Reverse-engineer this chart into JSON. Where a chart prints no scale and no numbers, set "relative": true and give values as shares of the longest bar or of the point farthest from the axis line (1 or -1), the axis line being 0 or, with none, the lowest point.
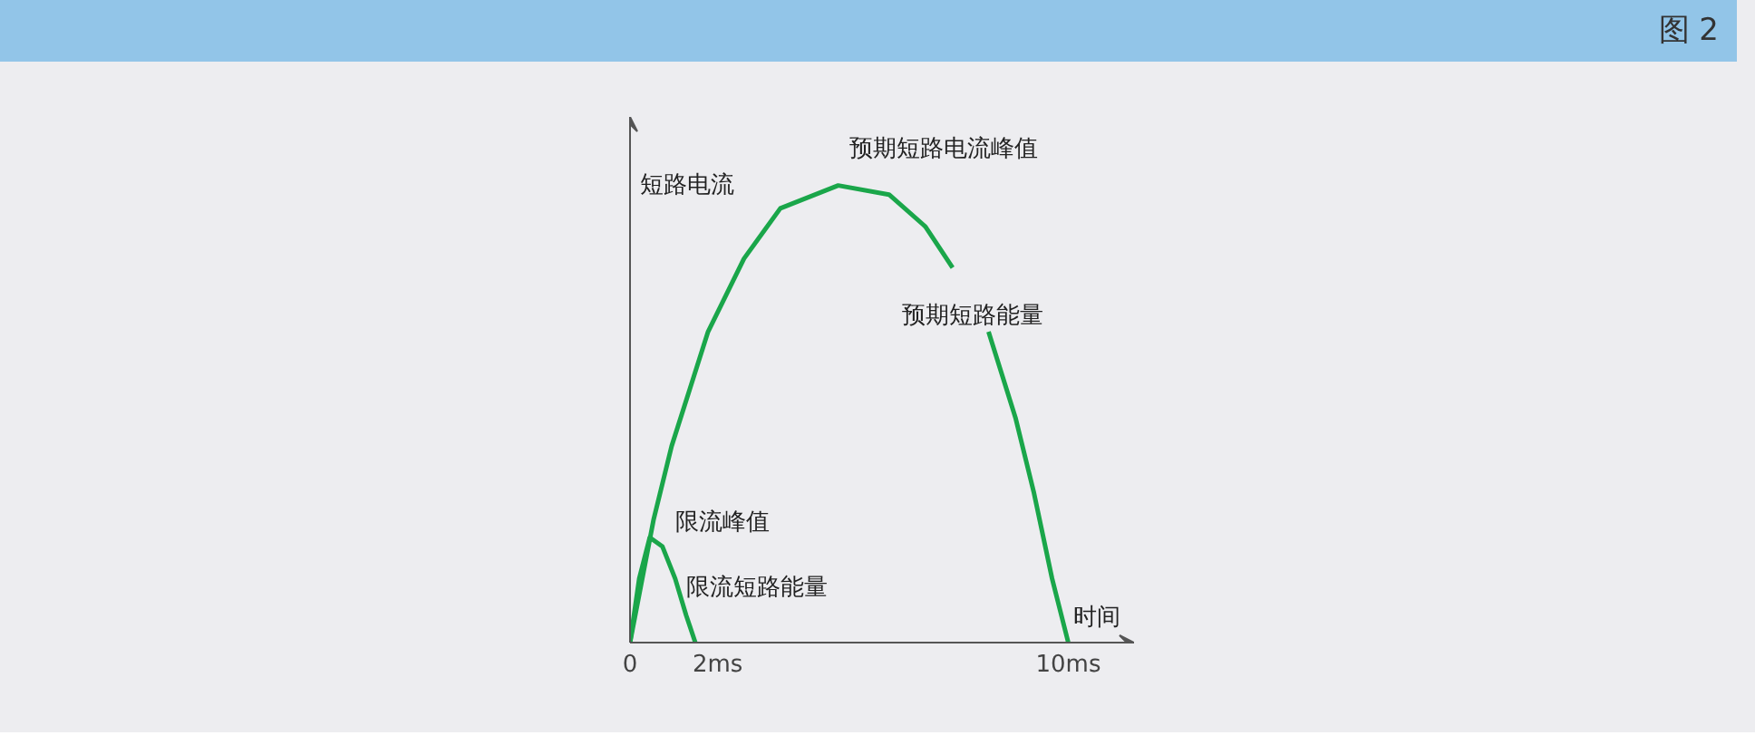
{
  "chart_data": {
    "type": "line",
    "title": "图 2",
    "xlabel": "时间",
    "ylabel": "短路电流",
    "relative": true,
    "grid": false,
    "xlim": [
      0,
      11.5
    ],
    "xticks": [
      0,
      {
        "value": 2,
        "label": "2ms"
      },
      {
        "value": 10,
        "label": "10ms"
      }
    ],
    "series": [
      {
        "color": "#1aa64a",
        "x": [
          0,
          0.54,
          0.95,
          1.78,
          2.6,
          3.43,
          4.75,
          5.91,
          6.74,
          7.36,
          7.8,
          8.18,
          8.8,
          9.21,
          9.63,
          10
        ],
        "values": [
          0,
          0.27,
          0.43,
          0.68,
          0.84,
          0.95,
          1,
          0.98,
          0.91,
          0.82,
          null,
          0.68,
          0.49,
          0.33,
          0.14,
          0
        ]
      },
      {
        "color": "#1aa64a",
        "x": [
          0,
          0.21,
          0.45,
          0.74,
          1.03,
          1.28,
          1.49
        ],
        "values": [
          0,
          0.14,
          0.23,
          0.21,
          0.14,
          0.06,
          0
        ]
      }
    ],
    "annotations": [
      "预期短路电流峰值",
      "预期短路能量",
      "限流峰值",
      "限流短路能量"
    ]
  }
}
